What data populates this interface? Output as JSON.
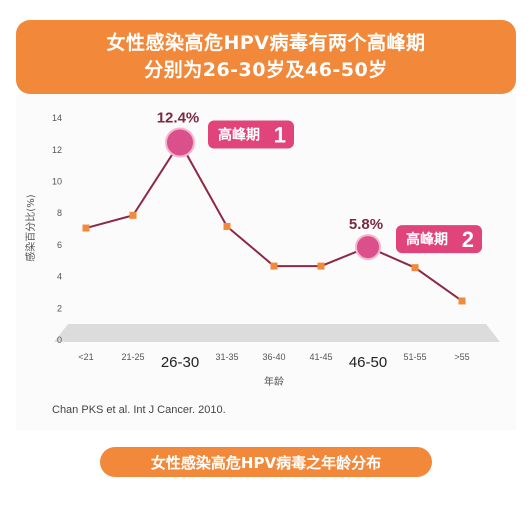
{
  "header": {
    "line1": "女性感染高危HPV病毒有两个高峰期",
    "line2": "分别为26-30岁及46-50岁"
  },
  "source": "Chan PKS et al. Int J Cancer. 2010.",
  "footer": {
    "label": "女性感染高危HPV病毒之年龄分布"
  },
  "colors": {
    "accent": "#f2893a",
    "line": "#8c2a45",
    "marker": "#f28a3d",
    "peak_badge": "#e0447a",
    "peak_bubble": "#d9508a"
  },
  "chart_data": {
    "type": "line",
    "title": "",
    "xlabel": "年龄",
    "ylabel": "感染百分比(%)",
    "ylim": [
      0,
      14
    ],
    "yticks": [
      "0",
      "2",
      "4",
      "6",
      "8",
      "10",
      "12",
      "14"
    ],
    "categories": [
      "<21",
      "21-25",
      "26-30",
      "31-35",
      "36-40",
      "41-45",
      "46-50",
      "51-55",
      ">55"
    ],
    "highlighted_categories": [
      "26-30",
      "46-50"
    ],
    "series": [
      {
        "values": [
          7.0,
          7.8,
          12.4,
          7.1,
          4.6,
          4.6,
          5.8,
          4.5,
          2.4
        ]
      }
    ],
    "peaks": [
      {
        "category": "26-30",
        "value_label": "12.4%",
        "badge": "高峰期",
        "badge_num": "1"
      },
      {
        "category": "46-50",
        "value_label": "5.8%",
        "badge": "高峰期",
        "badge_num": "2"
      }
    ],
    "grid": false
  }
}
